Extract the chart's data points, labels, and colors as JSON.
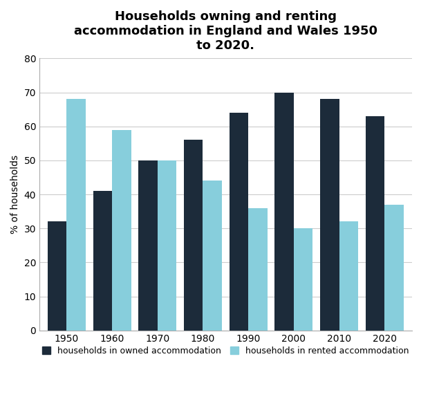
{
  "title": "Households owning and renting\naccommodation in England and Wales 1950\nto 2020.",
  "years": [
    1950,
    1960,
    1970,
    1980,
    1990,
    2000,
    2010,
    2020
  ],
  "owned": [
    32,
    41,
    50,
    56,
    64,
    70,
    68,
    63
  ],
  "rented": [
    68,
    59,
    50,
    44,
    36,
    30,
    32,
    37
  ],
  "owned_color": "#1C2B3A",
  "rented_color": "#87CEDC",
  "ylabel": "% of households",
  "ylim": [
    0,
    80
  ],
  "yticks": [
    0,
    10,
    20,
    30,
    40,
    50,
    60,
    70,
    80
  ],
  "legend_owned": "households in owned accommodation",
  "legend_rented": "households in rented accommodation",
  "bar_width": 0.42,
  "background_color": "#ffffff",
  "plot_bg_color": "#ffffff",
  "grid_color": "#cccccc",
  "title_fontsize": 13,
  "tick_fontsize": 10,
  "ylabel_fontsize": 10
}
